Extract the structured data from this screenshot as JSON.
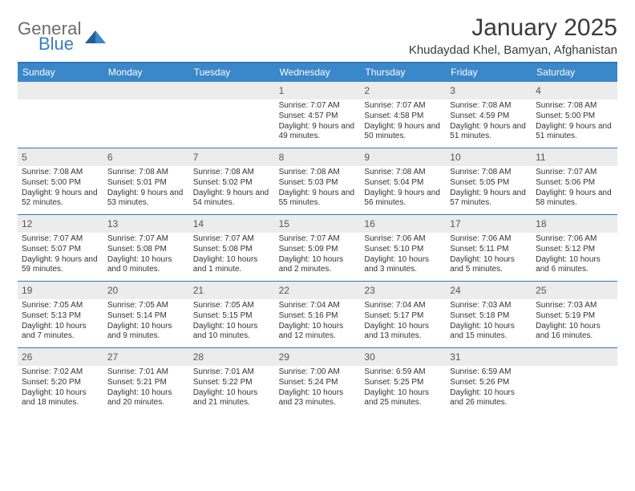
{
  "brand": {
    "general": "General",
    "blue": "Blue"
  },
  "title": "January 2025",
  "subtitle": "Khudaydad Khel, Bamyan, Afghanistan",
  "colors": {
    "header_bg": "#3a87c9",
    "rule": "#2f77b8",
    "daynum_bg": "#ececec",
    "text": "#333333",
    "logo_gray": "#6b6b6b",
    "logo_blue": "#3a7fbf"
  },
  "dow": [
    "Sunday",
    "Monday",
    "Tuesday",
    "Wednesday",
    "Thursday",
    "Friday",
    "Saturday"
  ],
  "weeks": [
    [
      {
        "blank": true
      },
      {
        "blank": true
      },
      {
        "blank": true
      },
      {
        "n": "1",
        "sr": "7:07 AM",
        "ss": "4:57 PM",
        "dl": "9 hours and 49 minutes."
      },
      {
        "n": "2",
        "sr": "7:07 AM",
        "ss": "4:58 PM",
        "dl": "9 hours and 50 minutes."
      },
      {
        "n": "3",
        "sr": "7:08 AM",
        "ss": "4:59 PM",
        "dl": "9 hours and 51 minutes."
      },
      {
        "n": "4",
        "sr": "7:08 AM",
        "ss": "5:00 PM",
        "dl": "9 hours and 51 minutes."
      }
    ],
    [
      {
        "n": "5",
        "sr": "7:08 AM",
        "ss": "5:00 PM",
        "dl": "9 hours and 52 minutes."
      },
      {
        "n": "6",
        "sr": "7:08 AM",
        "ss": "5:01 PM",
        "dl": "9 hours and 53 minutes."
      },
      {
        "n": "7",
        "sr": "7:08 AM",
        "ss": "5:02 PM",
        "dl": "9 hours and 54 minutes."
      },
      {
        "n": "8",
        "sr": "7:08 AM",
        "ss": "5:03 PM",
        "dl": "9 hours and 55 minutes."
      },
      {
        "n": "9",
        "sr": "7:08 AM",
        "ss": "5:04 PM",
        "dl": "9 hours and 56 minutes."
      },
      {
        "n": "10",
        "sr": "7:08 AM",
        "ss": "5:05 PM",
        "dl": "9 hours and 57 minutes."
      },
      {
        "n": "11",
        "sr": "7:07 AM",
        "ss": "5:06 PM",
        "dl": "9 hours and 58 minutes."
      }
    ],
    [
      {
        "n": "12",
        "sr": "7:07 AM",
        "ss": "5:07 PM",
        "dl": "9 hours and 59 minutes."
      },
      {
        "n": "13",
        "sr": "7:07 AM",
        "ss": "5:08 PM",
        "dl": "10 hours and 0 minutes."
      },
      {
        "n": "14",
        "sr": "7:07 AM",
        "ss": "5:08 PM",
        "dl": "10 hours and 1 minute."
      },
      {
        "n": "15",
        "sr": "7:07 AM",
        "ss": "5:09 PM",
        "dl": "10 hours and 2 minutes."
      },
      {
        "n": "16",
        "sr": "7:06 AM",
        "ss": "5:10 PM",
        "dl": "10 hours and 3 minutes."
      },
      {
        "n": "17",
        "sr": "7:06 AM",
        "ss": "5:11 PM",
        "dl": "10 hours and 5 minutes."
      },
      {
        "n": "18",
        "sr": "7:06 AM",
        "ss": "5:12 PM",
        "dl": "10 hours and 6 minutes."
      }
    ],
    [
      {
        "n": "19",
        "sr": "7:05 AM",
        "ss": "5:13 PM",
        "dl": "10 hours and 7 minutes."
      },
      {
        "n": "20",
        "sr": "7:05 AM",
        "ss": "5:14 PM",
        "dl": "10 hours and 9 minutes."
      },
      {
        "n": "21",
        "sr": "7:05 AM",
        "ss": "5:15 PM",
        "dl": "10 hours and 10 minutes."
      },
      {
        "n": "22",
        "sr": "7:04 AM",
        "ss": "5:16 PM",
        "dl": "10 hours and 12 minutes."
      },
      {
        "n": "23",
        "sr": "7:04 AM",
        "ss": "5:17 PM",
        "dl": "10 hours and 13 minutes."
      },
      {
        "n": "24",
        "sr": "7:03 AM",
        "ss": "5:18 PM",
        "dl": "10 hours and 15 minutes."
      },
      {
        "n": "25",
        "sr": "7:03 AM",
        "ss": "5:19 PM",
        "dl": "10 hours and 16 minutes."
      }
    ],
    [
      {
        "n": "26",
        "sr": "7:02 AM",
        "ss": "5:20 PM",
        "dl": "10 hours and 18 minutes."
      },
      {
        "n": "27",
        "sr": "7:01 AM",
        "ss": "5:21 PM",
        "dl": "10 hours and 20 minutes."
      },
      {
        "n": "28",
        "sr": "7:01 AM",
        "ss": "5:22 PM",
        "dl": "10 hours and 21 minutes."
      },
      {
        "n": "29",
        "sr": "7:00 AM",
        "ss": "5:24 PM",
        "dl": "10 hours and 23 minutes."
      },
      {
        "n": "30",
        "sr": "6:59 AM",
        "ss": "5:25 PM",
        "dl": "10 hours and 25 minutes."
      },
      {
        "n": "31",
        "sr": "6:59 AM",
        "ss": "5:26 PM",
        "dl": "10 hours and 26 minutes."
      },
      {
        "blank": true
      }
    ]
  ],
  "labels": {
    "sunrise": "Sunrise: ",
    "sunset": "Sunset: ",
    "daylight": "Daylight: "
  }
}
